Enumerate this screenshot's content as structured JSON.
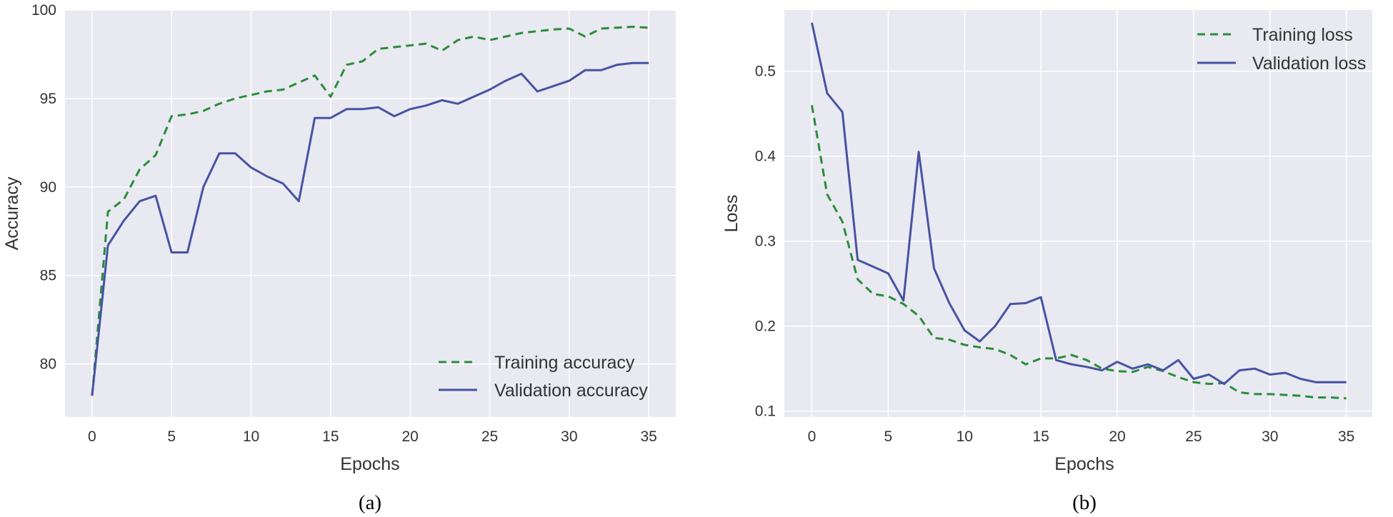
{
  "colors": {
    "plot_bg": "#e9e9f1",
    "grid": "#ffffff",
    "training": "#2a8c3a",
    "validation": "#4653a3",
    "text": "#333333"
  },
  "chart_data": [
    {
      "type": "line",
      "caption": "(a)",
      "xlabel": "Epochs",
      "ylabel": "Accuracy",
      "xlim": [
        -1.7,
        36.7
      ],
      "ylim": [
        77,
        100
      ],
      "xticks": [
        0,
        5,
        10,
        15,
        20,
        25,
        30,
        35
      ],
      "yticks": [
        80,
        85,
        90,
        95,
        100
      ],
      "legend_position": "bottom-right",
      "x": [
        0,
        1,
        2,
        3,
        4,
        5,
        6,
        7,
        8,
        9,
        10,
        11,
        12,
        13,
        14,
        15,
        16,
        17,
        18,
        19,
        20,
        21,
        22,
        23,
        24,
        25,
        26,
        27,
        28,
        29,
        30,
        31,
        32,
        33,
        34,
        35
      ],
      "series": [
        {
          "name": "Training accuracy",
          "style": "dashed",
          "color": "#2a8c3a",
          "values": [
            78.2,
            88.6,
            89.3,
            91.0,
            91.8,
            94.0,
            94.1,
            94.3,
            94.7,
            95.0,
            95.2,
            95.4,
            95.5,
            95.9,
            96.3,
            95.1,
            96.9,
            97.1,
            97.8,
            97.9,
            98.0,
            98.1,
            97.7,
            98.3,
            98.5,
            98.3,
            98.5,
            98.7,
            98.8,
            98.9,
            98.95,
            98.5,
            98.95,
            99.0,
            99.05,
            99.0
          ]
        },
        {
          "name": "Validation accuracy",
          "style": "solid",
          "color": "#4653a3",
          "values": [
            78.2,
            86.7,
            88.1,
            89.2,
            89.5,
            86.3,
            86.3,
            90.0,
            91.9,
            91.9,
            91.1,
            90.6,
            90.2,
            89.2,
            93.9,
            93.9,
            94.4,
            94.4,
            94.5,
            94.0,
            94.4,
            94.6,
            94.9,
            94.7,
            95.1,
            95.5,
            96.0,
            96.4,
            95.4,
            95.7,
            96.0,
            96.6,
            96.6,
            96.9,
            97.0,
            97.0
          ]
        }
      ]
    },
    {
      "type": "line",
      "caption": "(b)",
      "xlabel": "Epochs",
      "ylabel": "Loss",
      "xlim": [
        -1.8,
        36.7
      ],
      "ylim": [
        0.093,
        0.572
      ],
      "xticks": [
        0,
        5,
        10,
        15,
        20,
        25,
        30,
        35
      ],
      "yticks": [
        0.1,
        0.2,
        0.3,
        0.4,
        0.5
      ],
      "legend_position": "top-right",
      "x": [
        0,
        1,
        2,
        3,
        4,
        5,
        6,
        7,
        8,
        9,
        10,
        11,
        12,
        13,
        14,
        15,
        16,
        17,
        18,
        19,
        20,
        21,
        22,
        23,
        24,
        25,
        26,
        27,
        28,
        29,
        30,
        31,
        32,
        33,
        34,
        35
      ],
      "series": [
        {
          "name": "Training loss",
          "style": "dashed",
          "color": "#2a8c3a",
          "values": [
            0.46,
            0.355,
            0.323,
            0.255,
            0.238,
            0.235,
            0.226,
            0.212,
            0.186,
            0.184,
            0.178,
            0.175,
            0.173,
            0.166,
            0.155,
            0.162,
            0.162,
            0.166,
            0.16,
            0.15,
            0.147,
            0.146,
            0.152,
            0.147,
            0.14,
            0.134,
            0.132,
            0.133,
            0.122,
            0.12,
            0.12,
            0.119,
            0.118,
            0.116,
            0.116,
            0.115
          ]
        },
        {
          "name": "Validation loss",
          "style": "solid",
          "color": "#4653a3",
          "values": [
            0.557,
            0.474,
            0.452,
            0.278,
            0.27,
            0.262,
            0.23,
            0.405,
            0.268,
            0.227,
            0.195,
            0.182,
            0.2,
            0.226,
            0.227,
            0.234,
            0.16,
            0.155,
            0.152,
            0.148,
            0.158,
            0.15,
            0.155,
            0.148,
            0.16,
            0.138,
            0.143,
            0.132,
            0.148,
            0.15,
            0.143,
            0.145,
            0.138,
            0.134,
            0.134,
            0.134
          ]
        }
      ]
    }
  ]
}
